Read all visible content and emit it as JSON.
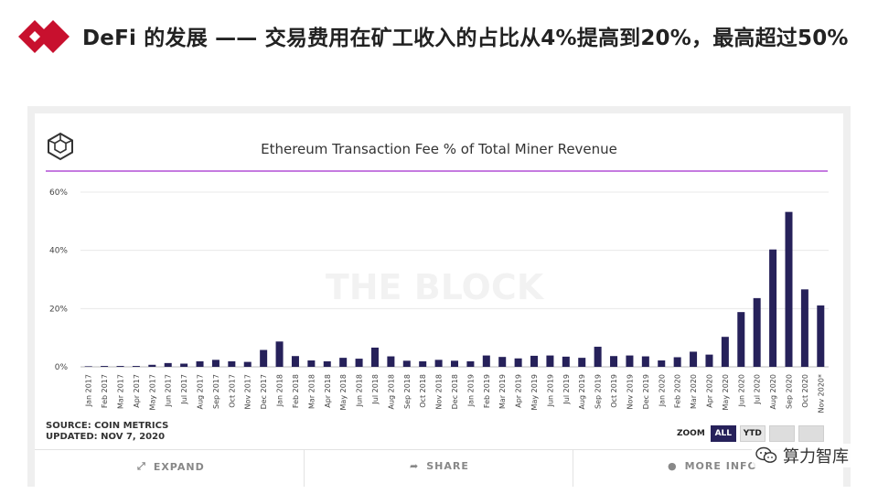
{
  "slide": {
    "title": "DeFi 的发展 —— 交易费用在矿工收入的占比从4%提高到20%，最高超过50%"
  },
  "card": {
    "watermark_text": "THE BLOCK",
    "source_line1": "SOURCE: COIN METRICS",
    "source_line2": "UPDATED: NOV 7, 2020",
    "zoom_label": "ZOOM",
    "zoom_all": "ALL",
    "zoom_ytd": "YTD",
    "expand_label": "EXPAND",
    "share_label": "SHARE",
    "more_label": "MORE INFO"
  },
  "overlay": {
    "text": "算力智库"
  },
  "colors": {
    "bar": "#26215a",
    "accent_line": "#c57be0",
    "logo_red": "#c8102e"
  },
  "chart_data": {
    "type": "bar",
    "title": "Ethereum Transaction Fee % of Total Miner Revenue",
    "xlabel": "",
    "ylabel": "",
    "ylim": [
      0,
      60
    ],
    "yticks": [
      "0%",
      "20%",
      "40%",
      "60%"
    ],
    "ytick_values": [
      0,
      20,
      40,
      60
    ],
    "grid": true,
    "categories": [
      "Jan 2017",
      "Feb 2017",
      "Mar 2017",
      "Apr 2017",
      "May 2017",
      "Jun 2017",
      "Jul 2017",
      "Aug 2017",
      "Sep 2017",
      "Oct 2017",
      "Nov 2017",
      "Dec 2017",
      "Jan 2018",
      "Feb 2018",
      "Mar 2018",
      "Apr 2018",
      "May 2018",
      "Jun 2018",
      "Jul 2018",
      "Aug 2018",
      "Sep 2018",
      "Oct 2018",
      "Nov 2018",
      "Dec 2018",
      "Jan 2019",
      "Feb 2019",
      "Mar 2019",
      "Apr 2019",
      "May 2019",
      "Jun 2019",
      "Jul 2019",
      "Aug 2019",
      "Sep 2019",
      "Oct 2019",
      "Nov 2019",
      "Dec 2019",
      "Jan 2020",
      "Feb 2020",
      "Mar 2020",
      "Apr 2020",
      "May 2020",
      "Jun 2020",
      "Jul 2020",
      "Aug 2020",
      "Sep 2020",
      "Oct 2020",
      "Nov 2020*"
    ],
    "values": [
      0.2,
      0.3,
      0.3,
      0.3,
      0.7,
      1.3,
      1.1,
      1.9,
      2.4,
      1.9,
      1.7,
      5.8,
      8.7,
      3.7,
      2.2,
      1.9,
      3.1,
      2.8,
      6.6,
      3.6,
      2.1,
      1.9,
      2.4,
      2.1,
      1.9,
      3.9,
      3.4,
      2.9,
      3.8,
      3.9,
      3.5,
      3.1,
      6.9,
      3.7,
      3.9,
      3.6,
      2.2,
      3.3,
      5.2,
      4.2,
      10.3,
      18.8,
      23.6,
      40.3,
      53.2,
      26.6,
      21.1
    ]
  }
}
